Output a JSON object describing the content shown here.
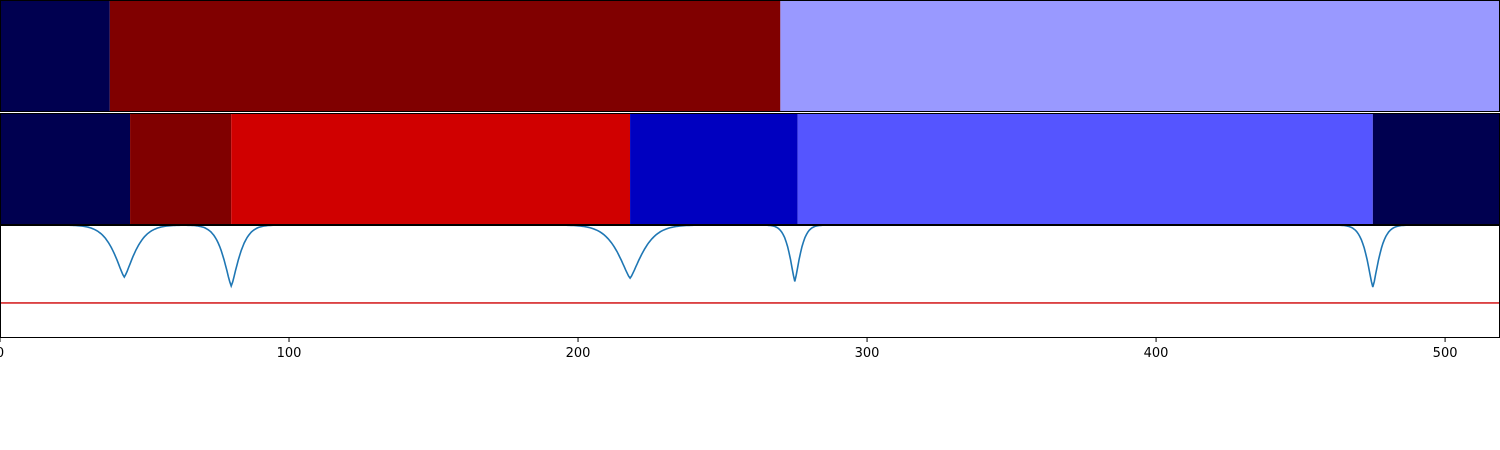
{
  "chart_data": [
    {
      "type": "heatmap",
      "panel": "segments-top",
      "colormap": "seismic",
      "segments": [
        {
          "start": 0,
          "end": 38,
          "color": "#000050"
        },
        {
          "start": 38,
          "end": 270,
          "color": "#800000"
        },
        {
          "start": 270,
          "end": 519,
          "color": "#9999ff"
        }
      ]
    },
    {
      "type": "heatmap",
      "panel": "segments-middle",
      "colormap": "seismic",
      "segments": [
        {
          "start": 0,
          "end": 45,
          "color": "#000050"
        },
        {
          "start": 45,
          "end": 80,
          "color": "#800000"
        },
        {
          "start": 80,
          "end": 218,
          "color": "#d00000"
        },
        {
          "start": 218,
          "end": 276,
          "color": "#0000c0"
        },
        {
          "start": 276,
          "end": 475,
          "color": "#5555ff"
        },
        {
          "start": 475,
          "end": 519,
          "color": "#000050"
        }
      ]
    },
    {
      "type": "line",
      "panel": "signal",
      "xlim": [
        0,
        519
      ],
      "ylim": [
        0,
        1
      ],
      "xticks": [
        0,
        100,
        200,
        300,
        400,
        500
      ],
      "threshold": 0.31,
      "threshold_color": "#d62728",
      "line_color": "#1f77b4",
      "dips": [
        {
          "x": 43,
          "min": 0.54,
          "width": 12
        },
        {
          "x": 80,
          "min": 0.46,
          "width": 9
        },
        {
          "x": 218,
          "min": 0.53,
          "width": 14
        },
        {
          "x": 275,
          "min": 0.5,
          "width": 6
        },
        {
          "x": 475,
          "min": 0.45,
          "width": 7
        }
      ]
    }
  ]
}
